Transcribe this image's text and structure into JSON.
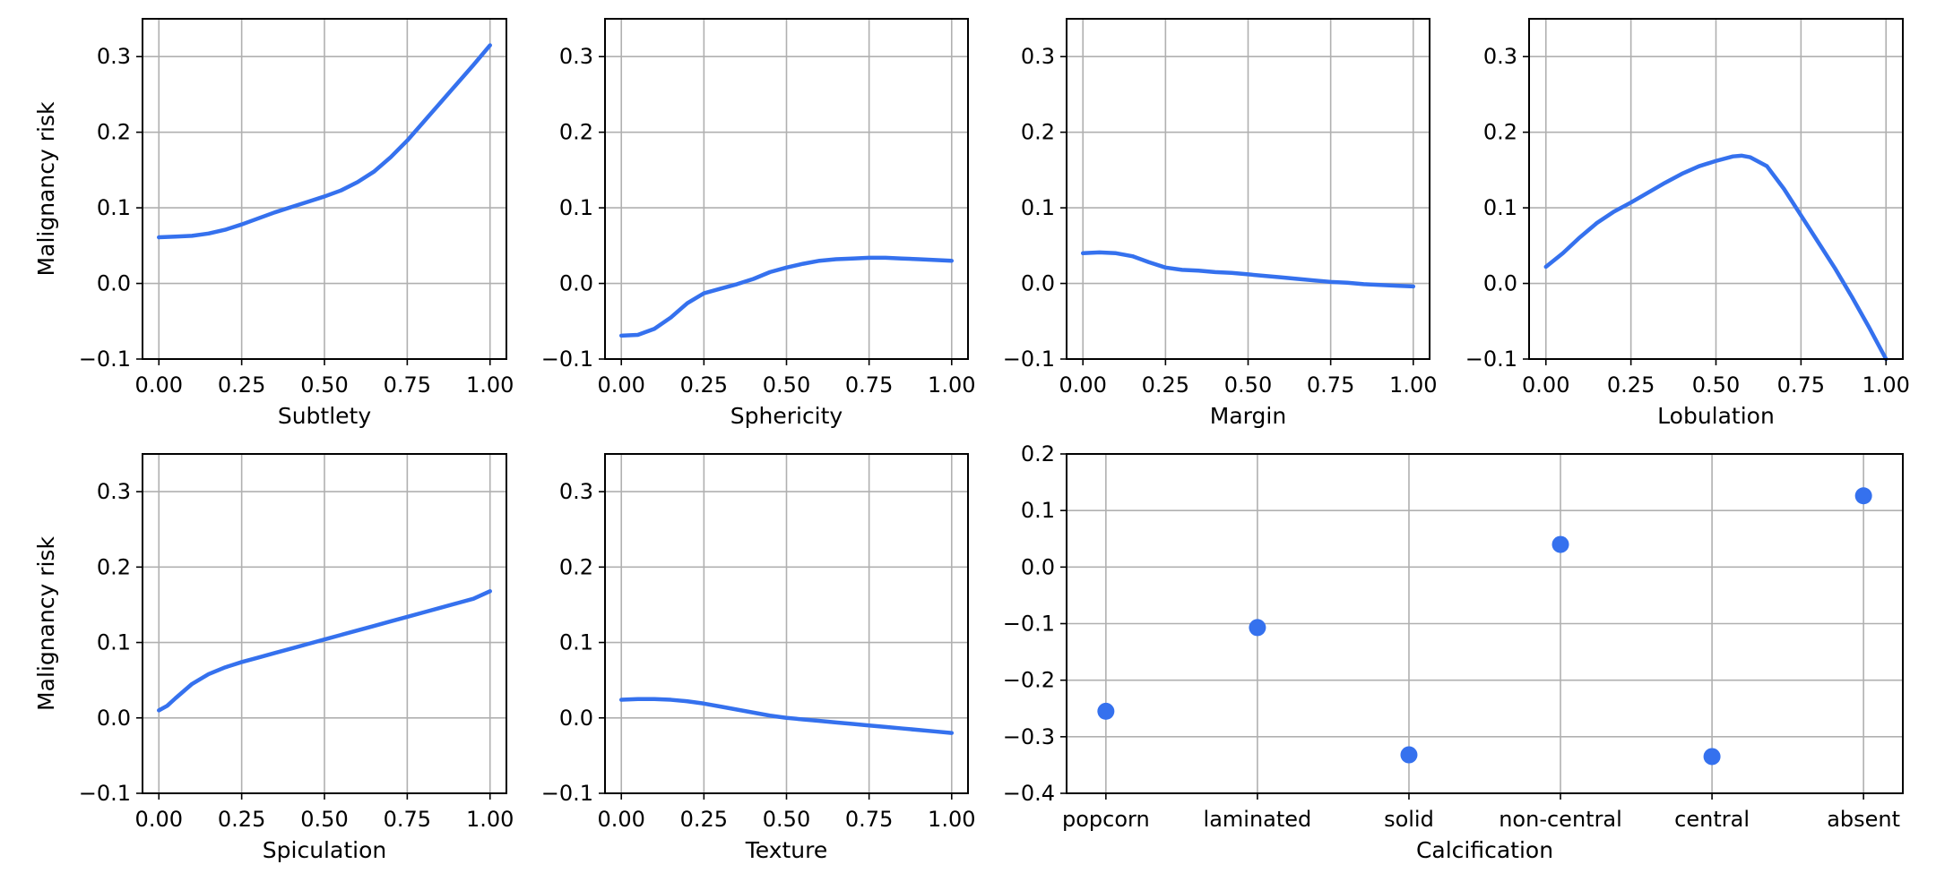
{
  "chart_data": [
    {
      "type": "line",
      "xlabel": "Subtlety",
      "ylabel": "Malignancy risk",
      "xlim": [
        0,
        1
      ],
      "ylim": [
        -0.1,
        0.35
      ],
      "xticks": [
        "0.00",
        "0.25",
        "0.50",
        "0.75",
        "1.00"
      ],
      "yticks": [
        "−0.1",
        "0.0",
        "0.1",
        "0.2",
        "0.3"
      ],
      "grid": true,
      "x": [
        0,
        0.05,
        0.1,
        0.15,
        0.2,
        0.25,
        0.3,
        0.35,
        0.4,
        0.45,
        0.5,
        0.55,
        0.6,
        0.65,
        0.7,
        0.75,
        0.8,
        0.85,
        0.9,
        0.95,
        1.0
      ],
      "y": [
        0.061,
        0.062,
        0.063,
        0.066,
        0.071,
        0.078,
        0.086,
        0.094,
        0.101,
        0.108,
        0.115,
        0.123,
        0.134,
        0.148,
        0.167,
        0.189,
        0.214,
        0.239,
        0.264,
        0.289,
        0.315
      ]
    },
    {
      "type": "line",
      "xlabel": "Sphericity",
      "ylabel": "",
      "xlim": [
        0,
        1
      ],
      "ylim": [
        -0.1,
        0.35
      ],
      "xticks": [
        "0.00",
        "0.25",
        "0.50",
        "0.75",
        "1.00"
      ],
      "yticks": [
        "−0.1",
        "0.0",
        "0.1",
        "0.2",
        "0.3"
      ],
      "grid": true,
      "x": [
        0,
        0.05,
        0.1,
        0.15,
        0.2,
        0.25,
        0.3,
        0.35,
        0.4,
        0.45,
        0.5,
        0.55,
        0.6,
        0.65,
        0.7,
        0.75,
        0.8,
        0.85,
        0.9,
        0.95,
        1.0
      ],
      "y": [
        -0.069,
        -0.068,
        -0.06,
        -0.045,
        -0.026,
        -0.013,
        -0.007,
        -0.001,
        0.006,
        0.015,
        0.021,
        0.026,
        0.03,
        0.032,
        0.033,
        0.034,
        0.034,
        0.033,
        0.032,
        0.031,
        0.03
      ]
    },
    {
      "type": "line",
      "xlabel": "Margin",
      "ylabel": "",
      "xlim": [
        0,
        1
      ],
      "ylim": [
        -0.1,
        0.35
      ],
      "xticks": [
        "0.00",
        "0.25",
        "0.50",
        "0.75",
        "1.00"
      ],
      "yticks": [
        "−0.1",
        "0.0",
        "0.1",
        "0.2",
        "0.3"
      ],
      "grid": true,
      "x": [
        0,
        0.05,
        0.1,
        0.15,
        0.2,
        0.25,
        0.3,
        0.35,
        0.4,
        0.45,
        0.5,
        0.55,
        0.6,
        0.65,
        0.7,
        0.75,
        0.8,
        0.85,
        0.9,
        0.95,
        1.0
      ],
      "y": [
        0.04,
        0.041,
        0.04,
        0.036,
        0.028,
        0.021,
        0.018,
        0.017,
        0.015,
        0.014,
        0.012,
        0.01,
        0.008,
        0.006,
        0.004,
        0.002,
        0.001,
        -0.001,
        -0.002,
        -0.003,
        -0.004
      ]
    },
    {
      "type": "line",
      "xlabel": "Lobulation",
      "ylabel": "",
      "xlim": [
        0,
        1
      ],
      "ylim": [
        -0.1,
        0.35
      ],
      "xticks": [
        "0.00",
        "0.25",
        "0.50",
        "0.75",
        "1.00"
      ],
      "yticks": [
        "−0.1",
        "0.0",
        "0.1",
        "0.2",
        "0.3"
      ],
      "grid": true,
      "x": [
        0,
        0.05,
        0.1,
        0.15,
        0.2,
        0.25,
        0.3,
        0.35,
        0.4,
        0.45,
        0.5,
        0.55,
        0.575,
        0.6,
        0.65,
        0.7,
        0.75,
        0.8,
        0.85,
        0.9,
        0.95,
        1.0
      ],
      "y": [
        0.022,
        0.04,
        0.061,
        0.08,
        0.095,
        0.107,
        0.12,
        0.133,
        0.145,
        0.155,
        0.162,
        0.168,
        0.169,
        0.167,
        0.155,
        0.125,
        0.09,
        0.055,
        0.02,
        -0.018,
        -0.058,
        -0.1
      ]
    },
    {
      "type": "line",
      "xlabel": "Spiculation",
      "ylabel": "Malignancy risk",
      "xlim": [
        0,
        1
      ],
      "ylim": [
        -0.1,
        0.35
      ],
      "xticks": [
        "0.00",
        "0.25",
        "0.50",
        "0.75",
        "1.00"
      ],
      "yticks": [
        "−0.1",
        "0.0",
        "0.1",
        "0.2",
        "0.3"
      ],
      "grid": true,
      "x": [
        0,
        0.025,
        0.05,
        0.1,
        0.15,
        0.2,
        0.25,
        0.3,
        0.35,
        0.4,
        0.45,
        0.5,
        0.55,
        0.6,
        0.65,
        0.7,
        0.75,
        0.8,
        0.85,
        0.9,
        0.95,
        1.0
      ],
      "y": [
        0.01,
        0.016,
        0.026,
        0.045,
        0.058,
        0.067,
        0.074,
        0.08,
        0.086,
        0.092,
        0.098,
        0.104,
        0.11,
        0.116,
        0.122,
        0.128,
        0.134,
        0.14,
        0.146,
        0.152,
        0.158,
        0.168
      ]
    },
    {
      "type": "line",
      "xlabel": "Texture",
      "ylabel": "",
      "xlim": [
        0,
        1
      ],
      "ylim": [
        -0.1,
        0.35
      ],
      "xticks": [
        "0.00",
        "0.25",
        "0.50",
        "0.75",
        "1.00"
      ],
      "yticks": [
        "−0.1",
        "0.0",
        "0.1",
        "0.2",
        "0.3"
      ],
      "grid": true,
      "x": [
        0,
        0.05,
        0.1,
        0.15,
        0.2,
        0.25,
        0.3,
        0.35,
        0.4,
        0.45,
        0.5,
        0.55,
        0.6,
        0.65,
        0.7,
        0.75,
        0.8,
        0.85,
        0.9,
        0.95,
        1.0
      ],
      "y": [
        0.024,
        0.025,
        0.025,
        0.024,
        0.022,
        0.019,
        0.015,
        0.011,
        0.007,
        0.003,
        0.0,
        -0.002,
        -0.004,
        -0.006,
        -0.008,
        -0.01,
        -0.012,
        -0.014,
        -0.016,
        -0.018,
        -0.02
      ]
    },
    {
      "type": "scatter",
      "xlabel": "Calcification",
      "ylabel": "",
      "categories": [
        "popcorn",
        "laminated",
        "solid",
        "non-central",
        "central",
        "absent"
      ],
      "values": [
        -0.255,
        -0.107,
        -0.332,
        0.04,
        -0.335,
        0.126
      ],
      "ylim": [
        -0.4,
        0.2
      ],
      "yticks": [
        "−0.4",
        "−0.3",
        "−0.2",
        "−0.1",
        "0.0",
        "0.1",
        "0.2"
      ],
      "grid": true
    }
  ],
  "style": {
    "line_color": "#3571ee",
    "marker_color": "#3571ee"
  }
}
